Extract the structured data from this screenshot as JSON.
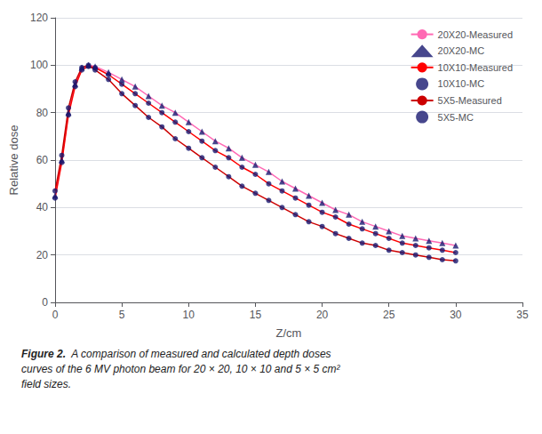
{
  "chart_data": {
    "type": "line",
    "xlabel": "Z/cm",
    "ylabel": "Relative dose",
    "caption": "Figure 2.  A comparison of measured and calculated depth doses\ncurves of the 6 MV photon beam for 20 × 20, 10 × 10 and 5 × 5 cm²\nfield sizes.",
    "xlim": [
      0,
      35
    ],
    "ylim": [
      0,
      120
    ],
    "xticks": [
      0,
      5,
      10,
      15,
      20,
      25,
      30,
      35
    ],
    "yticks": [
      0,
      20,
      40,
      60,
      80,
      100,
      120
    ],
    "grid": true,
    "legend": "upper right",
    "x": [
      0,
      0.5,
      1.0,
      1.5,
      2.0,
      2.5,
      3.0,
      4.0,
      5.0,
      6.0,
      7.0,
      8.0,
      9.0,
      10.0,
      11.0,
      12.0,
      13.0,
      14.0,
      15.0,
      16.0,
      17.0,
      18.0,
      19.0,
      20.0,
      21.0,
      22.0,
      23.0,
      24.0,
      25.0,
      26.0,
      27.0,
      28.0,
      29.0,
      30.0
    ],
    "series": [
      {
        "name": "20X20-Measured",
        "type": "line",
        "line_style": "solid",
        "color": "#ff69b4",
        "values": [
          45,
          60,
          80,
          92,
          99,
          100,
          99.5,
          97,
          94,
          91,
          87,
          83,
          80,
          76,
          72,
          68,
          65,
          61,
          58,
          55,
          51,
          48,
          45,
          42,
          39,
          37,
          34,
          32,
          30,
          28,
          27,
          26,
          25,
          24
        ]
      },
      {
        "name": "20X20-MC",
        "type": "scatter",
        "marker": "triangle",
        "color": "#191970",
        "values": [
          45,
          60,
          80,
          92,
          99,
          100,
          99.5,
          97,
          94,
          91,
          87,
          83,
          80,
          76,
          72,
          68,
          65,
          61,
          58,
          55,
          51,
          48,
          45,
          42,
          39,
          37,
          34,
          32,
          30,
          28,
          27,
          26,
          25,
          24
        ]
      },
      {
        "name": "10X10-Measured",
        "type": "line",
        "line_style": "solid",
        "color": "#ff0000",
        "values": [
          44,
          59,
          79,
          91,
          98,
          99.5,
          99,
          96,
          92,
          88,
          84,
          80,
          76,
          72,
          68,
          64,
          61,
          57,
          54,
          50,
          47,
          44,
          41,
          38,
          36,
          33,
          31,
          29,
          27,
          25,
          24,
          23,
          22,
          21
        ]
      },
      {
        "name": "10X10-MC",
        "type": "scatter",
        "marker": "circle",
        "color": "#191970",
        "values": [
          44,
          59,
          79,
          91,
          98,
          99.5,
          99,
          96,
          92,
          88,
          84,
          80,
          76,
          72,
          68,
          64,
          61,
          57,
          54,
          50,
          47,
          44,
          41,
          38,
          36,
          33,
          31,
          29,
          27,
          25,
          24,
          23,
          22,
          21
        ]
      },
      {
        "name": "5X5-Measured",
        "type": "line",
        "line_style": "solid",
        "color": "#cc0000",
        "values": [
          47,
          62,
          82,
          93,
          99,
          100,
          98,
          94,
          88,
          83,
          78,
          74,
          69,
          65,
          61,
          57,
          53,
          49,
          46,
          43,
          40,
          37,
          34,
          32,
          29,
          27,
          25,
          24,
          22,
          21,
          20,
          19,
          18,
          17.5
        ]
      },
      {
        "name": "5X5-MC",
        "type": "scatter",
        "marker": "circle",
        "color": "#191970",
        "values": [
          47,
          62,
          82,
          93,
          99,
          100,
          98,
          94,
          88,
          83,
          78,
          74,
          69,
          65,
          61,
          57,
          53,
          49,
          46,
          43,
          40,
          37,
          34,
          32,
          29,
          27,
          25,
          24,
          22,
          21,
          20,
          19,
          18,
          17.5
        ]
      }
    ]
  }
}
